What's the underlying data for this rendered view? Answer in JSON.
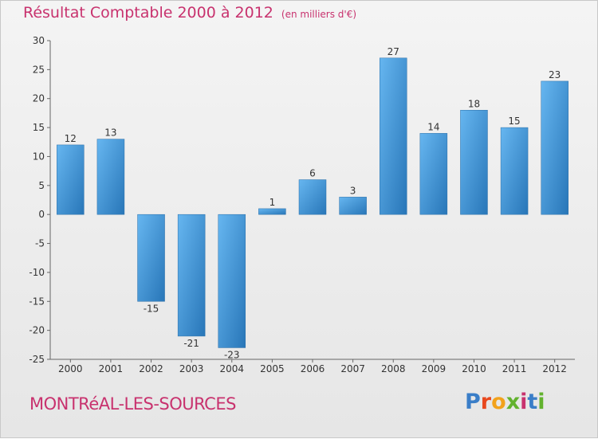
{
  "header": {
    "title": "Résultat Comptable 2000 à 2012",
    "subtitle": "(en milliers d'€)"
  },
  "footer": {
    "commune": "MONTRéAL-LES-SOURCES",
    "logo_letters": [
      "P",
      "r",
      "o",
      "x",
      "i",
      "t",
      "i"
    ],
    "logo_colors": [
      "#3a7ec8",
      "#e8481e",
      "#f2a21c",
      "#62b22e",
      "#c8326e",
      "#3a7ec8",
      "#62b22e"
    ]
  },
  "colors": {
    "title": "#c8326e",
    "bar_light": "#5fb0ec",
    "bar_dark": "#2a7cbc"
  },
  "chart_data": {
    "type": "bar",
    "title": "Résultat Comptable 2000 à 2012",
    "subtitle": "(en milliers d'€)",
    "xlabel": "",
    "ylabel": "",
    "categories": [
      "2000",
      "2001",
      "2002",
      "2003",
      "2004",
      "2005",
      "2006",
      "2007",
      "2008",
      "2009",
      "2010",
      "2011",
      "2012"
    ],
    "values": [
      12,
      13,
      -15,
      -21,
      -23,
      1,
      6,
      3,
      27,
      14,
      18,
      15,
      23
    ],
    "ylim": [
      -25,
      30
    ],
    "yticks": [
      30,
      25,
      20,
      15,
      10,
      5,
      0,
      -5,
      -10,
      -15,
      -20,
      -25
    ],
    "grid": false,
    "legend": "none"
  }
}
